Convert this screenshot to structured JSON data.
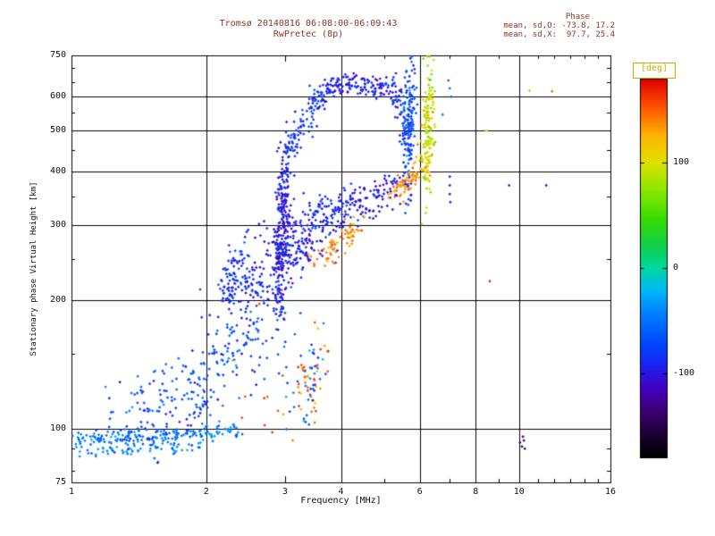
{
  "header": {
    "title_line1": "Tromsø 20140816 06:08:00-06:09:43",
    "title_line2": "RwPretec (8p)",
    "stats_title": "Phase",
    "stats_line1": "mean, sd,O: -73.8, 17.2",
    "stats_line2": "mean, sd,X:  97.7, 25.4"
  },
  "axes": {
    "x_label": "Frequency [MHz]",
    "y_label": "Stationary phase Virtual Height [km]",
    "scale": "log-log",
    "x_range": [
      1,
      16
    ],
    "y_range": [
      75,
      750
    ],
    "x_ticks": [
      1,
      2,
      3,
      4,
      6,
      8,
      10,
      16
    ],
    "x_minor": [
      5,
      7,
      9,
      11,
      12,
      13,
      14,
      15
    ],
    "y_ticks": [
      750,
      600,
      500,
      400,
      300,
      200,
      100,
      75
    ],
    "y_minor": [
      80,
      90,
      150,
      250,
      350,
      450,
      550,
      650,
      700
    ],
    "x_grid": [
      2,
      4,
      6,
      8,
      10
    ],
    "y_grid": [
      100,
      200,
      300,
      400,
      500,
      600
    ]
  },
  "colorbar": {
    "label": "[deg]",
    "ticks": [
      100,
      0,
      -100
    ],
    "range": [
      -180,
      180
    ],
    "stops": [
      [
        0.0,
        "#000000"
      ],
      [
        0.05,
        "#16002a"
      ],
      [
        0.12,
        "#3c0070"
      ],
      [
        0.18,
        "#4400c0"
      ],
      [
        0.24,
        "#1c20f0"
      ],
      [
        0.3,
        "#0048ff"
      ],
      [
        0.38,
        "#0080ff"
      ],
      [
        0.44,
        "#00b8f8"
      ],
      [
        0.5,
        "#00d8a0"
      ],
      [
        0.56,
        "#10d048"
      ],
      [
        0.63,
        "#38dc00"
      ],
      [
        0.71,
        "#90e800"
      ],
      [
        0.78,
        "#e0e000"
      ],
      [
        0.85,
        "#ffb400"
      ],
      [
        0.92,
        "#ff5a00"
      ],
      [
        1.0,
        "#e00000"
      ]
    ]
  },
  "colors": {
    "title": "#8b3626",
    "axis_text": "#111111",
    "frame": "#000000",
    "deg_box": "#c9ae00",
    "background": "#ffffff"
  },
  "chart_data": {
    "type": "scatter",
    "title": "Tromsø 20140816 06:08:00-06:09:43 / RwPretec (8p)",
    "xlabel": "Frequency [MHz]",
    "ylabel": "Stationary phase Virtual Height [km]",
    "color_label": "Phase [deg]",
    "xlim": [
      1,
      16
    ],
    "ylim": [
      75,
      750
    ],
    "color_range": [
      -180,
      180
    ],
    "grid": true,
    "traces": [
      {
        "name": "e-layer-band",
        "points": [
          [
            1.0,
            95
          ],
          [
            1.6,
            96
          ],
          [
            2.35,
            99
          ]
        ],
        "n": 180,
        "jf": 0.012,
        "jh": 0.01,
        "phase": -45,
        "spread": 22
      },
      {
        "name": "e-layer-band-2",
        "points": [
          [
            1.0,
            88
          ],
          [
            1.5,
            90
          ],
          [
            2.0,
            92
          ]
        ],
        "n": 55,
        "jf": 0.012,
        "jh": 0.007,
        "phase": -40,
        "spread": 18
      },
      {
        "name": "e-region-cloud",
        "points": [
          [
            1.35,
            104
          ],
          [
            1.7,
            113
          ],
          [
            2.0,
            128
          ],
          [
            2.3,
            150
          ],
          [
            2.55,
            172
          ]
        ],
        "n": 230,
        "jf": 0.035,
        "jh": 0.055,
        "phase": -70,
        "spread": 30
      },
      {
        "name": "e-cloud-upper",
        "points": [
          [
            2.15,
            178
          ],
          [
            2.5,
            196
          ],
          [
            2.9,
            196
          ]
        ],
        "n": 45,
        "jf": 0.03,
        "jh": 0.045,
        "phase": -85,
        "spread": 25
      },
      {
        "name": "blob-2p3",
        "points": [
          [
            2.2,
            205
          ],
          [
            2.3,
            226
          ],
          [
            2.38,
            248
          ],
          [
            2.46,
            262
          ]
        ],
        "n": 85,
        "jf": 0.012,
        "jh": 0.028,
        "phase": -85,
        "spread": 22
      },
      {
        "name": "blob-tail",
        "points": [
          [
            2.46,
            215
          ],
          [
            2.7,
            208
          ],
          [
            2.9,
            204
          ]
        ],
        "n": 40,
        "jf": 0.012,
        "jh": 0.02,
        "phase": -85,
        "spread": 20
      },
      {
        "name": "cusp-column",
        "points": [
          [
            2.92,
            208
          ],
          [
            2.95,
            262
          ],
          [
            2.97,
            330
          ],
          [
            3.0,
            398
          ],
          [
            3.03,
            436
          ]
        ],
        "n": 250,
        "jf": 0.008,
        "jh": 0.05,
        "phase": -100,
        "spread": 26
      },
      {
        "name": "cusp-spread",
        "points": [
          [
            2.8,
            252
          ],
          [
            3.0,
            270
          ],
          [
            3.28,
            287
          ]
        ],
        "n": 110,
        "jf": 0.028,
        "jh": 0.05,
        "phase": -95,
        "spread": 28
      },
      {
        "name": "f-arc-rise",
        "points": [
          [
            3.04,
            442
          ],
          [
            3.16,
            482
          ],
          [
            3.32,
            527
          ],
          [
            3.52,
            577
          ],
          [
            3.7,
            610
          ]
        ],
        "n": 105,
        "jf": 0.011,
        "jh": 0.018,
        "phase": -82,
        "spread": 22
      },
      {
        "name": "f-arc-top",
        "points": [
          [
            3.7,
            612
          ],
          [
            3.95,
            636
          ],
          [
            4.2,
            646
          ],
          [
            4.5,
            640
          ],
          [
            4.8,
            627
          ],
          [
            5.05,
            633
          ],
          [
            5.2,
            646
          ]
        ],
        "n": 125,
        "jf": 0.011,
        "jh": 0.011,
        "phase": -95,
        "spread": 22
      },
      {
        "name": "f-arc-descent",
        "points": [
          [
            5.2,
            644
          ],
          [
            5.34,
            598
          ],
          [
            5.46,
            543
          ],
          [
            5.56,
            488
          ],
          [
            5.61,
            448
          ]
        ],
        "n": 55,
        "jf": 0.007,
        "jh": 0.022,
        "phase": -88,
        "spread": 22
      },
      {
        "name": "o-asymptote",
        "points": [
          [
            5.63,
            395
          ],
          [
            5.66,
            470
          ],
          [
            5.69,
            550
          ],
          [
            5.73,
            630
          ],
          [
            5.76,
            665
          ]
        ],
        "n": 150,
        "jf": 0.006,
        "jh": 0.05,
        "phase": -72,
        "spread": 35
      },
      {
        "name": "mid-trace",
        "points": [
          [
            3.06,
            262
          ],
          [
            3.3,
            272
          ],
          [
            3.6,
            292
          ],
          [
            3.95,
            315
          ],
          [
            4.3,
            336
          ]
        ],
        "n": 115,
        "jf": 0.02,
        "jh": 0.028,
        "phase": -95,
        "spread": 28
      },
      {
        "name": "mid-trace-b",
        "points": [
          [
            3.3,
            300
          ],
          [
            3.7,
            318
          ],
          [
            4.1,
            334
          ]
        ],
        "n": 50,
        "jf": 0.015,
        "jh": 0.02,
        "phase": -90,
        "spread": 22
      },
      {
        "name": "mid-trace-2",
        "points": [
          [
            4.3,
            338
          ],
          [
            4.7,
            352
          ],
          [
            5.1,
            363
          ],
          [
            5.48,
            376
          ]
        ],
        "n": 80,
        "jf": 0.014,
        "jh": 0.02,
        "phase": -100,
        "spread": 22
      },
      {
        "name": "x-orange-low",
        "points": [
          [
            3.55,
            247
          ],
          [
            3.75,
            261
          ],
          [
            4.0,
            277
          ],
          [
            4.27,
            293
          ],
          [
            4.45,
            300
          ]
        ],
        "n": 65,
        "jf": 0.01,
        "jh": 0.013,
        "phase": 142,
        "spread": 14
      },
      {
        "name": "x-orange-mid",
        "points": [
          [
            5.25,
            356
          ],
          [
            5.5,
            368
          ],
          [
            5.76,
            383
          ],
          [
            5.97,
            396
          ]
        ],
        "n": 55,
        "jf": 0.009,
        "jh": 0.011,
        "phase": 138,
        "spread": 16
      },
      {
        "name": "x-orange-knee",
        "points": [
          [
            5.98,
            398
          ],
          [
            6.08,
            415
          ],
          [
            6.16,
            440
          ]
        ],
        "n": 25,
        "jf": 0.008,
        "jh": 0.02,
        "phase": 120,
        "spread": 20
      },
      {
        "name": "x-asymptote",
        "points": [
          [
            6.19,
            392
          ],
          [
            6.23,
            455
          ],
          [
            6.27,
            525
          ],
          [
            6.31,
            590
          ],
          [
            6.34,
            645
          ],
          [
            6.36,
            664
          ]
        ],
        "n": 150,
        "jf": 0.006,
        "jh": 0.05,
        "phase": 95,
        "spread": 32
      },
      {
        "name": "low-blob-warm",
        "points": [
          [
            3.22,
            118
          ],
          [
            3.38,
            128
          ],
          [
            3.52,
            140
          ],
          [
            3.62,
            150
          ]
        ],
        "n": 42,
        "jf": 0.017,
        "jh": 0.04,
        "phase": 140,
        "spread": 28
      },
      {
        "name": "low-blob-cool",
        "points": [
          [
            3.2,
            115
          ],
          [
            3.4,
            130
          ],
          [
            3.58,
            146
          ]
        ],
        "n": 40,
        "jf": 0.018,
        "jh": 0.045,
        "phase": -60,
        "spread": 30
      },
      {
        "name": "sparse-warm-low",
        "points": [
          [
            2.45,
            104
          ],
          [
            2.8,
            130
          ],
          [
            3.15,
            162
          ]
        ],
        "n": 14,
        "jf": 0.045,
        "jh": 0.09,
        "phase": 152,
        "spread": 20
      },
      {
        "name": "sparse-cool-mid",
        "points": [
          [
            2.5,
            155
          ],
          [
            2.8,
            176
          ],
          [
            3.06,
            196
          ]
        ],
        "n": 30,
        "jf": 0.03,
        "jh": 0.055,
        "phase": -72,
        "spread": 25
      }
    ],
    "isolated_points": [
      [
        6.95,
        655,
        -60
      ],
      [
        7.0,
        628,
        -55
      ],
      [
        7.05,
        600,
        -60
      ],
      [
        7.0,
        390,
        -100
      ],
      [
        7.0,
        372,
        -100
      ],
      [
        7.0,
        355,
        -105
      ],
      [
        7.02,
        340,
        -100
      ],
      [
        8.45,
        500,
        110
      ],
      [
        8.6,
        222,
        170
      ],
      [
        9.5,
        372,
        -100
      ],
      [
        11.5,
        372,
        -100
      ],
      [
        10.05,
        93,
        -145
      ],
      [
        10.15,
        91,
        -150
      ],
      [
        10.25,
        94,
        -140
      ],
      [
        10.3,
        90,
        -145
      ],
      [
        10.2,
        96,
        -135
      ],
      [
        10.55,
        620,
        130
      ],
      [
        11.85,
        618,
        150
      ],
      [
        6.75,
        545,
        -50
      ],
      [
        6.5,
        470,
        60
      ],
      [
        4.45,
        660,
        -95
      ],
      [
        4.52,
        655,
        -100
      ]
    ]
  }
}
